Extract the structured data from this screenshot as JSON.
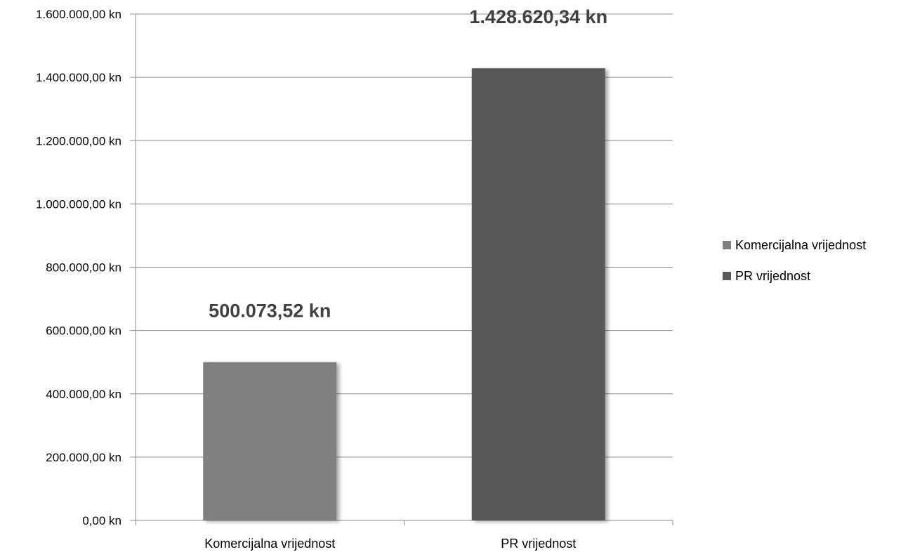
{
  "chart_data": {
    "type": "bar",
    "categories": [
      "Komercijalna vrijednost",
      "PR vrijednost"
    ],
    "values": [
      500073.52,
      1428620.34
    ],
    "data_labels": [
      "500.073,52 kn",
      "1.428.620,34 kn"
    ],
    "colors": [
      "#808080",
      "#595959"
    ],
    "ylim": [
      0,
      1600000
    ],
    "yticks": [
      0,
      200000,
      400000,
      600000,
      800000,
      1000000,
      1200000,
      1400000,
      1600000
    ],
    "ytick_labels": [
      "0,00 kn",
      "200.000,00 kn",
      "400.000,00 kn",
      "600.000,00 kn",
      "800.000,00 kn",
      "1.000.000,00 kn",
      "1.200.000,00 kn",
      "1.400.000,00 kn",
      "1.600.000,00 kn"
    ],
    "grid": true,
    "legend": {
      "position": "right",
      "entries": [
        "Komercijalna vrijednost",
        "PR vrijednost"
      ]
    }
  }
}
